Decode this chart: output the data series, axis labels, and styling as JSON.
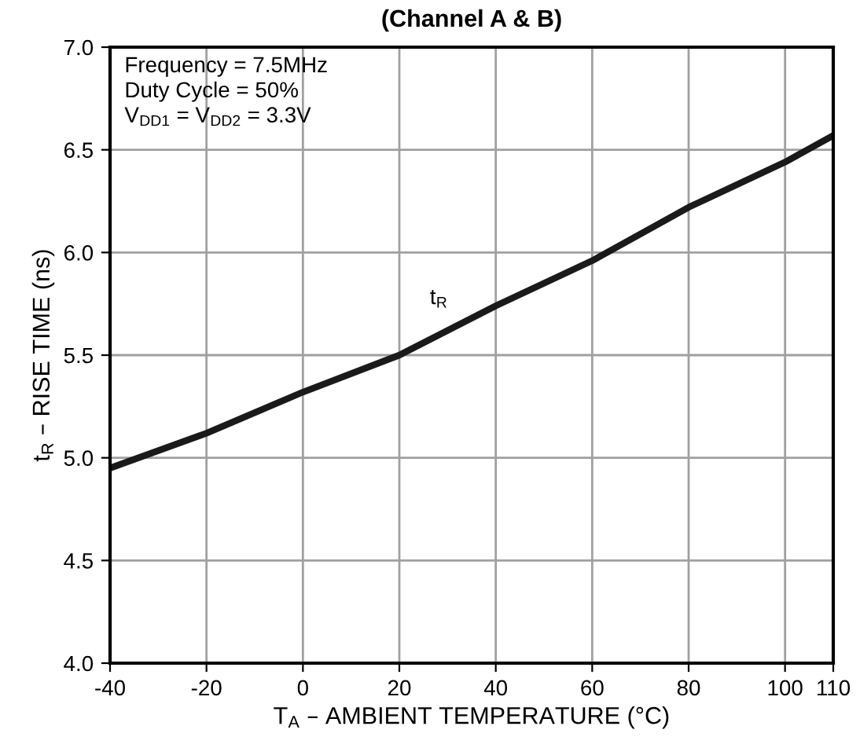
{
  "chart_data": {
    "type": "line",
    "title": "(Channel A & B)",
    "xlabel": "T$_{A}$ – AMBIENT TEMPERATURE (°C)",
    "ylabel": "t$_{R}$ – RISE TIME (ns)",
    "x": [
      -40,
      -20,
      0,
      20,
      40,
      60,
      80,
      100,
      110
    ],
    "series": [
      {
        "name": "t$_{R}$",
        "color": "#1a1a1a",
        "values": [
          4.95,
          5.12,
          5.32,
          5.5,
          5.74,
          5.96,
          6.22,
          6.44,
          6.57
        ]
      }
    ],
    "xlim": [
      -40,
      110
    ],
    "xticks": [
      -40,
      -20,
      0,
      20,
      40,
      60,
      80,
      100,
      110
    ],
    "ylim": [
      4.0,
      7.0
    ],
    "yticks": [
      {
        "value": 4.0,
        "label": "4.0"
      },
      {
        "value": 4.5,
        "label": "4.5"
      },
      {
        "value": 5.0,
        "label": "5.0"
      },
      {
        "value": 5.5,
        "label": "5.5"
      },
      {
        "value": 6.0,
        "label": "6.0"
      },
      {
        "value": 6.5,
        "label": "6.5"
      },
      {
        "value": 7.0,
        "label": "7.0"
      }
    ],
    "grid": true,
    "marker": "none",
    "line_style": "solid",
    "annotations": [
      "Frequency = 7.5MHz\nDuty Cycle = 50%\nV$_{DD1}$ = V$_{DD2}$ = 3.3V"
    ]
  }
}
